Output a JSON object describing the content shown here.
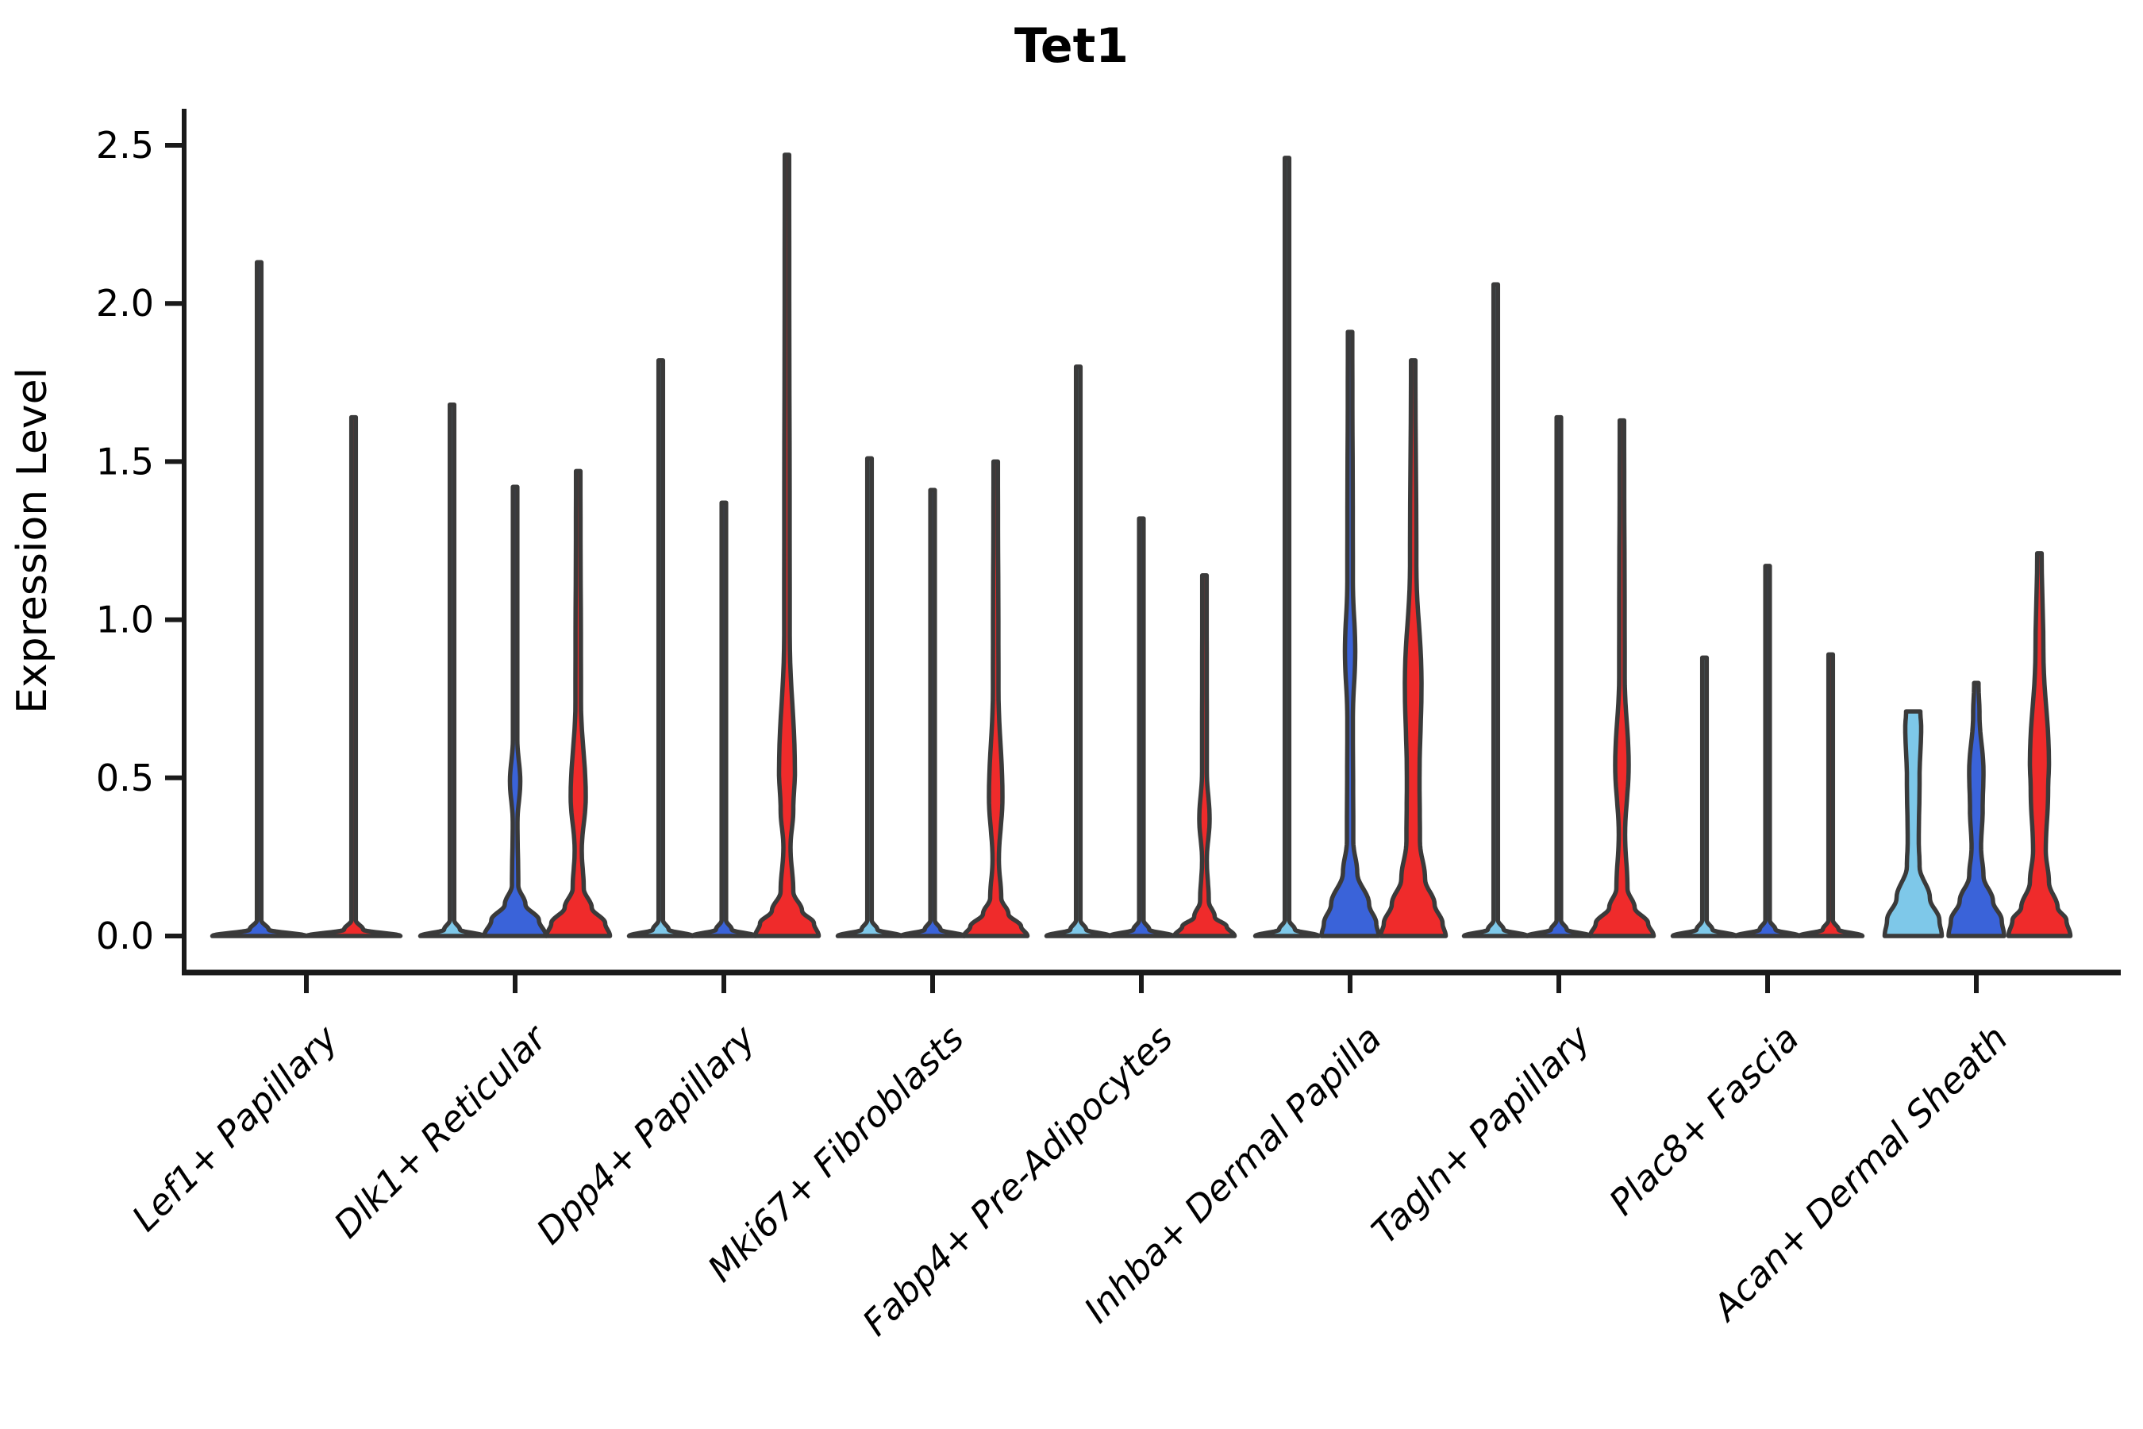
{
  "title": "Tet1",
  "ylabel": "Expression Level",
  "chart_data": {
    "type": "violin",
    "title": "Tet1",
    "xlabel": "",
    "ylabel": "Expression Level",
    "ylim": [
      0,
      2.5
    ],
    "yticks": [
      0.0,
      0.5,
      1.0,
      1.5,
      2.0,
      2.5
    ],
    "ytick_labels": [
      "0.0",
      "0.5",
      "1.0",
      "1.5",
      "2.0",
      "2.5"
    ],
    "grid": false,
    "legend": "none",
    "x_label_rotation_deg": 45,
    "palette": {
      "lightblue": "#7EC8E9",
      "blue": "#3A63D9",
      "red": "#EF2B2B",
      "outline": "#3A3A3A",
      "axis": "#1A1A1A"
    },
    "categories": [
      "Lef1+ Papillary",
      "Dlk1+ Reticular",
      "Dpp4+ Papillary",
      "Mki67+ Fibroblasts",
      "Fabp4+ Pre-Adipocytes",
      "Inhba+ Dermal Papilla",
      "Tagln+ Papillary",
      "Plac8+ Fascia",
      "Acan+ Dermal Sheath"
    ],
    "groups": [
      {
        "category": "Lef1+ Papillary",
        "offsets": [
          -59.5,
          59.5
        ],
        "violins": [
          {
            "color": "blue",
            "max": 2.13,
            "flat_top": false,
            "profile": [
              [
                2.13,
                2.8
              ],
              [
                0.05,
                2.8
              ],
              [
                0.02,
                12
              ],
              [
                0,
                59
              ]
            ]
          },
          {
            "color": "red",
            "max": 1.64,
            "flat_top": false,
            "profile": [
              [
                1.64,
                2.8
              ],
              [
                0.05,
                2.8
              ],
              [
                0.02,
                12
              ],
              [
                0,
                59
              ]
            ]
          }
        ]
      },
      {
        "category": "Dlk1+ Reticular",
        "offsets": [
          -79.5,
          0,
          79.5
        ],
        "violins": [
          {
            "color": "lightblue",
            "max": 1.68,
            "flat_top": false,
            "profile": [
              [
                1.68,
                2.8
              ],
              [
                0.05,
                2.8
              ],
              [
                0.02,
                10
              ],
              [
                0,
                40
              ]
            ]
          },
          {
            "color": "blue",
            "max": 1.42,
            "flat_top": false,
            "profile": [
              [
                1.42,
                2.8
              ],
              [
                0.62,
                2.8
              ],
              [
                0.49,
                6.5
              ],
              [
                0.36,
                3
              ],
              [
                0.16,
                4
              ],
              [
                0.1,
                13
              ],
              [
                0.05,
                30
              ],
              [
                0,
                39
              ]
            ]
          },
          {
            "color": "red",
            "max": 1.47,
            "flat_top": false,
            "profile": [
              [
                1.47,
                2.8
              ],
              [
                0.74,
                3.5
              ],
              [
                0.44,
                9.5
              ],
              [
                0.27,
                4.5
              ],
              [
                0.15,
                7
              ],
              [
                0.09,
                17
              ],
              [
                0.04,
                34
              ],
              [
                0,
                40
              ]
            ]
          }
        ]
      },
      {
        "category": "Dpp4+ Papillary",
        "offsets": [
          -79.5,
          0,
          79.5
        ],
        "violins": [
          {
            "color": "lightblue",
            "max": 1.82,
            "flat_top": false,
            "profile": [
              [
                1.82,
                2.8
              ],
              [
                0.05,
                2.8
              ],
              [
                0.02,
                10
              ],
              [
                0,
                40
              ]
            ]
          },
          {
            "color": "blue",
            "max": 1.37,
            "flat_top": false,
            "profile": [
              [
                1.37,
                2.8
              ],
              [
                0.05,
                2.8
              ],
              [
                0.02,
                10
              ],
              [
                0,
                40
              ]
            ]
          },
          {
            "color": "red",
            "max": 2.47,
            "flat_top": false,
            "profile": [
              [
                2.47,
                2.8
              ],
              [
                0.95,
                3.5
              ],
              [
                0.52,
                10
              ],
              [
                0.4,
                8
              ],
              [
                0.28,
                4.5
              ],
              [
                0.14,
                8
              ],
              [
                0.08,
                19
              ],
              [
                0.04,
                34
              ],
              [
                0,
                40
              ]
            ]
          }
        ]
      },
      {
        "category": "Mki67+ Fibroblasts",
        "offsets": [
          -79.5,
          0,
          79.5
        ],
        "violins": [
          {
            "color": "lightblue",
            "max": 1.51,
            "flat_top": false,
            "profile": [
              [
                1.51,
                2.8
              ],
              [
                0.05,
                2.8
              ],
              [
                0.02,
                10
              ],
              [
                0,
                40
              ]
            ]
          },
          {
            "color": "blue",
            "max": 1.41,
            "flat_top": false,
            "profile": [
              [
                1.41,
                2.8
              ],
              [
                0.05,
                2.8
              ],
              [
                0.02,
                10
              ],
              [
                0,
                40
              ]
            ]
          },
          {
            "color": "red",
            "max": 1.5,
            "flat_top": false,
            "profile": [
              [
                1.5,
                2.8
              ],
              [
                0.78,
                3.5
              ],
              [
                0.44,
                8.5
              ],
              [
                0.24,
                4
              ],
              [
                0.12,
                7
              ],
              [
                0.07,
                16
              ],
              [
                0.03,
                32
              ],
              [
                0,
                40
              ]
            ]
          }
        ]
      },
      {
        "category": "Fabp4+ Pre-Adipocytes",
        "offsets": [
          -79.5,
          0,
          79.5
        ],
        "violins": [
          {
            "color": "lightblue",
            "max": 1.8,
            "flat_top": false,
            "profile": [
              [
                1.8,
                2.8
              ],
              [
                0.05,
                2.8
              ],
              [
                0.02,
                10
              ],
              [
                0,
                40
              ]
            ]
          },
          {
            "color": "blue",
            "max": 1.32,
            "flat_top": false,
            "profile": [
              [
                1.32,
                2.8
              ],
              [
                0.05,
                2.8
              ],
              [
                0.02,
                10
              ],
              [
                0,
                40
              ]
            ]
          },
          {
            "color": "red",
            "max": 1.14,
            "flat_top": false,
            "profile": [
              [
                1.14,
                2.8
              ],
              [
                0.52,
                3
              ],
              [
                0.37,
                6.5
              ],
              [
                0.24,
                3
              ],
              [
                0.11,
                5.5
              ],
              [
                0.06,
                13
              ],
              [
                0.03,
                28
              ],
              [
                0,
                38
              ]
            ]
          }
        ]
      },
      {
        "category": "Inhba+ Dermal Papilla",
        "offsets": [
          -79.5,
          0,
          79.5
        ],
        "violins": [
          {
            "color": "lightblue",
            "max": 2.46,
            "flat_top": false,
            "profile": [
              [
                2.46,
                2.8
              ],
              [
                0.05,
                2.8
              ],
              [
                0.02,
                10
              ],
              [
                0,
                40
              ]
            ]
          },
          {
            "color": "blue",
            "max": 1.91,
            "flat_top": false,
            "profile": [
              [
                1.91,
                2.8
              ],
              [
                1.12,
                3.5
              ],
              [
                0.9,
                6.5
              ],
              [
                0.69,
                3.5
              ],
              [
                0.3,
                4
              ],
              [
                0.2,
                9
              ],
              [
                0.1,
                24
              ],
              [
                0.04,
                33
              ],
              [
                0,
                36
              ]
            ]
          },
          {
            "color": "red",
            "max": 1.82,
            "flat_top": false,
            "profile": [
              [
                1.82,
                2.8
              ],
              [
                1.17,
                4
              ],
              [
                0.8,
                10.5
              ],
              [
                0.5,
                8
              ],
              [
                0.3,
                8.5
              ],
              [
                0.18,
                15
              ],
              [
                0.1,
                27
              ],
              [
                0.04,
                37
              ],
              [
                0,
                41
              ]
            ]
          }
        ]
      },
      {
        "category": "Tagln+ Papillary",
        "offsets": [
          -79.5,
          0,
          79.5
        ],
        "violins": [
          {
            "color": "lightblue",
            "max": 2.06,
            "flat_top": false,
            "profile": [
              [
                2.06,
                2.8
              ],
              [
                0.05,
                2.8
              ],
              [
                0.02,
                10
              ],
              [
                0,
                40
              ]
            ]
          },
          {
            "color": "blue",
            "max": 1.64,
            "flat_top": false,
            "profile": [
              [
                1.64,
                2.8
              ],
              [
                0.05,
                2.8
              ],
              [
                0.02,
                10
              ],
              [
                0,
                40
              ]
            ]
          },
          {
            "color": "red",
            "max": 1.63,
            "flat_top": false,
            "profile": [
              [
                1.63,
                2.8
              ],
              [
                0.82,
                3.5
              ],
              [
                0.54,
                8.5
              ],
              [
                0.32,
                4
              ],
              [
                0.15,
                7
              ],
              [
                0.09,
                16
              ],
              [
                0.04,
                33
              ],
              [
                0,
                40
              ]
            ]
          }
        ]
      },
      {
        "category": "Plac8+ Fascia",
        "offsets": [
          -79.5,
          0,
          79.5
        ],
        "violins": [
          {
            "color": "lightblue",
            "max": 0.88,
            "flat_top": false,
            "profile": [
              [
                0.88,
                2.8
              ],
              [
                0.05,
                2.8
              ],
              [
                0.02,
                10
              ],
              [
                0,
                40
              ]
            ]
          },
          {
            "color": "blue",
            "max": 1.17,
            "flat_top": false,
            "profile": [
              [
                1.17,
                2.8
              ],
              [
                0.05,
                2.8
              ],
              [
                0.02,
                10
              ],
              [
                0,
                40
              ]
            ]
          },
          {
            "color": "red",
            "max": 0.89,
            "flat_top": false,
            "profile": [
              [
                0.89,
                2.8
              ],
              [
                0.05,
                2.8
              ],
              [
                0.02,
                10
              ],
              [
                0,
                40
              ]
            ]
          }
        ]
      },
      {
        "category": "Acan+ Dermal Sheath",
        "offsets": [
          -79.5,
          0,
          79.5
        ],
        "violins": [
          {
            "color": "lightblue",
            "max": 0.71,
            "flat_top": true,
            "profile": [
              [
                0.71,
                9
              ],
              [
                0.66,
                10
              ],
              [
                0.5,
                8
              ],
              [
                0.3,
                7
              ],
              [
                0.22,
                8
              ],
              [
                0.12,
                21
              ],
              [
                0.05,
                33
              ],
              [
                0,
                36
              ]
            ]
          },
          {
            "color": "blue",
            "max": 0.8,
            "flat_top": false,
            "profile": [
              [
                0.8,
                2.8
              ],
              [
                0.7,
                4
              ],
              [
                0.52,
                9
              ],
              [
                0.4,
                8
              ],
              [
                0.28,
                6
              ],
              [
                0.19,
                9
              ],
              [
                0.11,
                21
              ],
              [
                0.05,
                32
              ],
              [
                0,
                35
              ]
            ]
          },
          {
            "color": "red",
            "max": 1.21,
            "flat_top": false,
            "profile": [
              [
                1.21,
                2.8
              ],
              [
                0.9,
                5
              ],
              [
                0.55,
                12
              ],
              [
                0.46,
                11
              ],
              [
                0.27,
                8
              ],
              [
                0.17,
                12
              ],
              [
                0.09,
                23
              ],
              [
                0.05,
                34
              ],
              [
                0,
                39
              ]
            ]
          }
        ]
      }
    ]
  }
}
